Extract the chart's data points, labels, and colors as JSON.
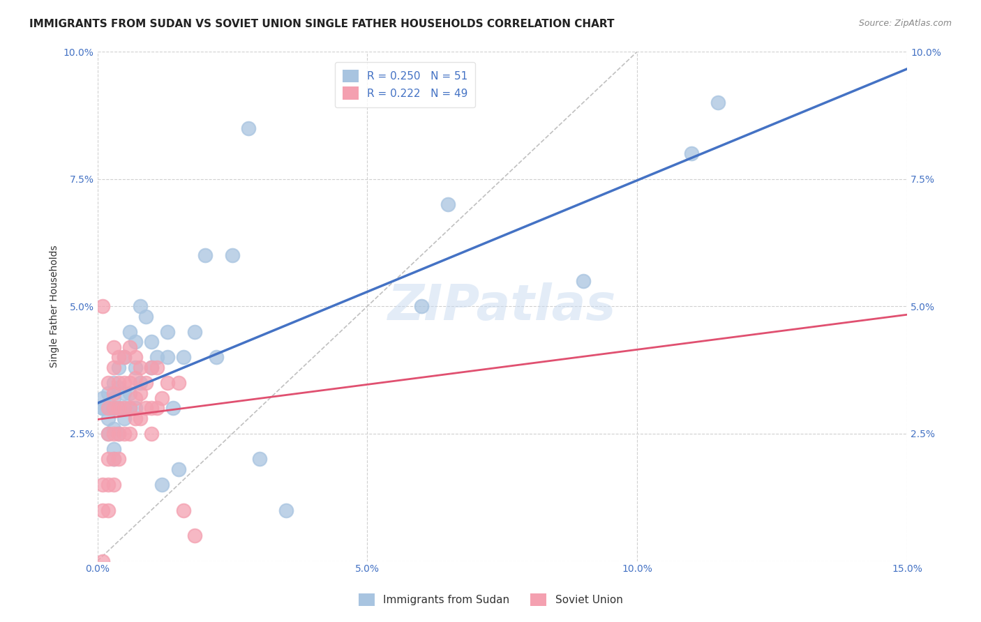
{
  "title": "IMMIGRANTS FROM SUDAN VS SOVIET UNION SINGLE FATHER HOUSEHOLDS CORRELATION CHART",
  "source": "Source: ZipAtlas.com",
  "xlabel": "",
  "ylabel": "Single Father Households",
  "xlim": [
    0,
    0.15
  ],
  "ylim": [
    0,
    0.1
  ],
  "xticks": [
    0.0,
    0.05,
    0.1,
    0.15
  ],
  "xtick_labels": [
    "0.0%",
    "5.0%",
    "10.0%",
    "15.0%"
  ],
  "yticks": [
    0.0,
    0.025,
    0.05,
    0.075,
    0.1
  ],
  "ytick_labels": [
    "",
    "2.5%",
    "5.0%",
    "7.5%",
    "10.0%"
  ],
  "sudan_R": 0.25,
  "sudan_N": 51,
  "soviet_R": 0.222,
  "soviet_N": 49,
  "sudan_color": "#a8c4e0",
  "soviet_color": "#f4a0b0",
  "sudan_line_color": "#4472c4",
  "soviet_line_color": "#e05070",
  "sudan_x": [
    0.001,
    0.001,
    0.001,
    0.002,
    0.002,
    0.002,
    0.002,
    0.003,
    0.003,
    0.003,
    0.003,
    0.003,
    0.003,
    0.004,
    0.004,
    0.004,
    0.004,
    0.005,
    0.005,
    0.005,
    0.005,
    0.006,
    0.006,
    0.006,
    0.007,
    0.007,
    0.007,
    0.008,
    0.008,
    0.009,
    0.01,
    0.01,
    0.011,
    0.012,
    0.013,
    0.013,
    0.014,
    0.015,
    0.016,
    0.018,
    0.02,
    0.022,
    0.025,
    0.028,
    0.03,
    0.035,
    0.06,
    0.065,
    0.09,
    0.11,
    0.115
  ],
  "sudan_y": [
    0.03,
    0.03,
    0.032,
    0.025,
    0.028,
    0.03,
    0.033,
    0.02,
    0.022,
    0.026,
    0.03,
    0.032,
    0.035,
    0.025,
    0.03,
    0.034,
    0.038,
    0.028,
    0.03,
    0.033,
    0.04,
    0.03,
    0.033,
    0.045,
    0.03,
    0.038,
    0.043,
    0.035,
    0.05,
    0.048,
    0.038,
    0.043,
    0.04,
    0.015,
    0.04,
    0.045,
    0.03,
    0.018,
    0.04,
    0.045,
    0.06,
    0.04,
    0.06,
    0.085,
    0.02,
    0.01,
    0.05,
    0.07,
    0.055,
    0.08,
    0.09
  ],
  "soviet_x": [
    0.001,
    0.001,
    0.001,
    0.001,
    0.002,
    0.002,
    0.002,
    0.002,
    0.002,
    0.002,
    0.003,
    0.003,
    0.003,
    0.003,
    0.003,
    0.003,
    0.003,
    0.004,
    0.004,
    0.004,
    0.004,
    0.004,
    0.005,
    0.005,
    0.005,
    0.005,
    0.006,
    0.006,
    0.006,
    0.006,
    0.007,
    0.007,
    0.007,
    0.007,
    0.008,
    0.008,
    0.008,
    0.009,
    0.009,
    0.01,
    0.01,
    0.01,
    0.011,
    0.011,
    0.012,
    0.013,
    0.015,
    0.016,
    0.018
  ],
  "soviet_y": [
    0.0,
    0.01,
    0.015,
    0.05,
    0.01,
    0.015,
    0.02,
    0.025,
    0.03,
    0.035,
    0.015,
    0.02,
    0.025,
    0.03,
    0.033,
    0.038,
    0.042,
    0.02,
    0.025,
    0.03,
    0.035,
    0.04,
    0.025,
    0.03,
    0.035,
    0.04,
    0.025,
    0.03,
    0.035,
    0.042,
    0.028,
    0.032,
    0.036,
    0.04,
    0.028,
    0.033,
    0.038,
    0.03,
    0.035,
    0.025,
    0.03,
    0.038,
    0.03,
    0.038,
    0.032,
    0.035,
    0.035,
    0.01,
    0.005
  ],
  "background_color": "#ffffff",
  "grid_color": "#d0d0d0",
  "watermark_text": "ZIPatlas",
  "title_fontsize": 11,
  "axis_label_fontsize": 10,
  "tick_fontsize": 10,
  "legend_fontsize": 11
}
